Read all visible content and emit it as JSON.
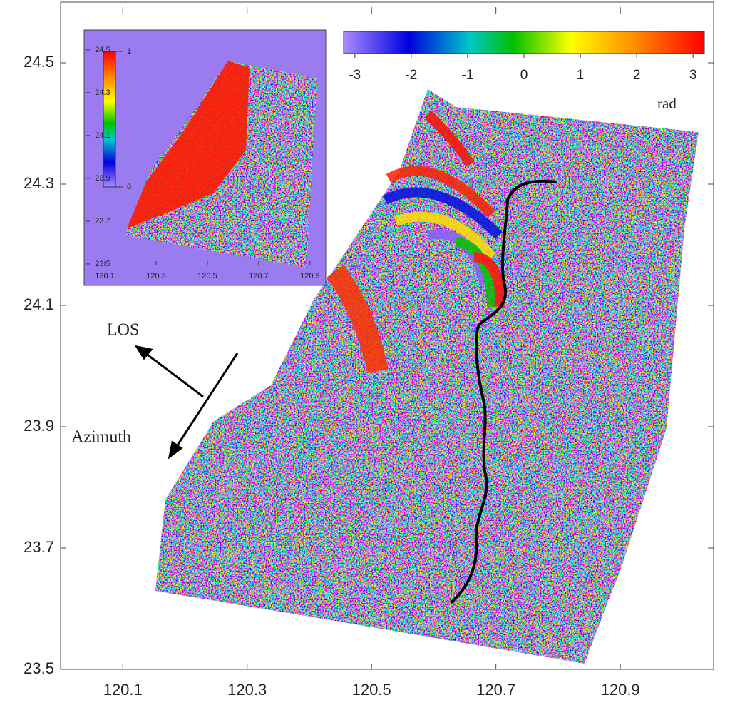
{
  "main": {
    "xlim": [
      120.0,
      121.05
    ],
    "ylim": [
      23.5,
      24.6
    ],
    "xticks": [
      120.1,
      120.3,
      120.5,
      120.7,
      120.9
    ],
    "yticks": [
      23.5,
      23.7,
      23.9,
      24.1,
      24.3,
      24.5
    ]
  },
  "colorbar": {
    "clim": [
      -3.2,
      3.2
    ],
    "ticks": [
      -3,
      -2,
      -1,
      0,
      1,
      2,
      3
    ],
    "unit": "rad"
  },
  "inset": {
    "xlim": [
      120.025,
      120.956
    ],
    "ylim": [
      23.483,
      24.583
    ],
    "xticks": [
      120.1,
      120.3,
      120.5,
      120.7,
      120.9
    ],
    "yticks": [
      23.5,
      23.7,
      23.9,
      24.1,
      24.3,
      24.5
    ],
    "colorbar": {
      "clim": [
        0,
        1
      ],
      "ticks": [
        0,
        1
      ]
    }
  },
  "annotations": {
    "los": "LOS",
    "azimuth": "Azimuth"
  }
}
